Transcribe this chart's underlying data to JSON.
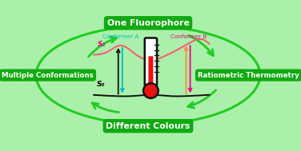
{
  "bg_color": "#aaf0aa",
  "box_color": "#11aa11",
  "box_text_color": "white",
  "box_labels": [
    "One Fluorophore",
    "Multiple Conformations",
    "Ratiometric Thermometry",
    "Different Colours"
  ],
  "ellipse_color": "#22cc22",
  "s1_label": "S₁",
  "s0_label": "S₀",
  "conformer_a_label": "Conformer A",
  "conformer_b_label": "Conformer B",
  "cyan_color": "#00bbcc",
  "pink_color": "#ee0088",
  "orange_color": "#ff8844",
  "dark_color": "#111111",
  "s0_curve_color": "#111111",
  "s1_curve_color": "#ff5577",
  "therm_red": "#ee1111",
  "therm_outline": "#111111",
  "therm_white": "#ffffff",
  "figsize": [
    3.76,
    1.89
  ],
  "dpi": 100
}
